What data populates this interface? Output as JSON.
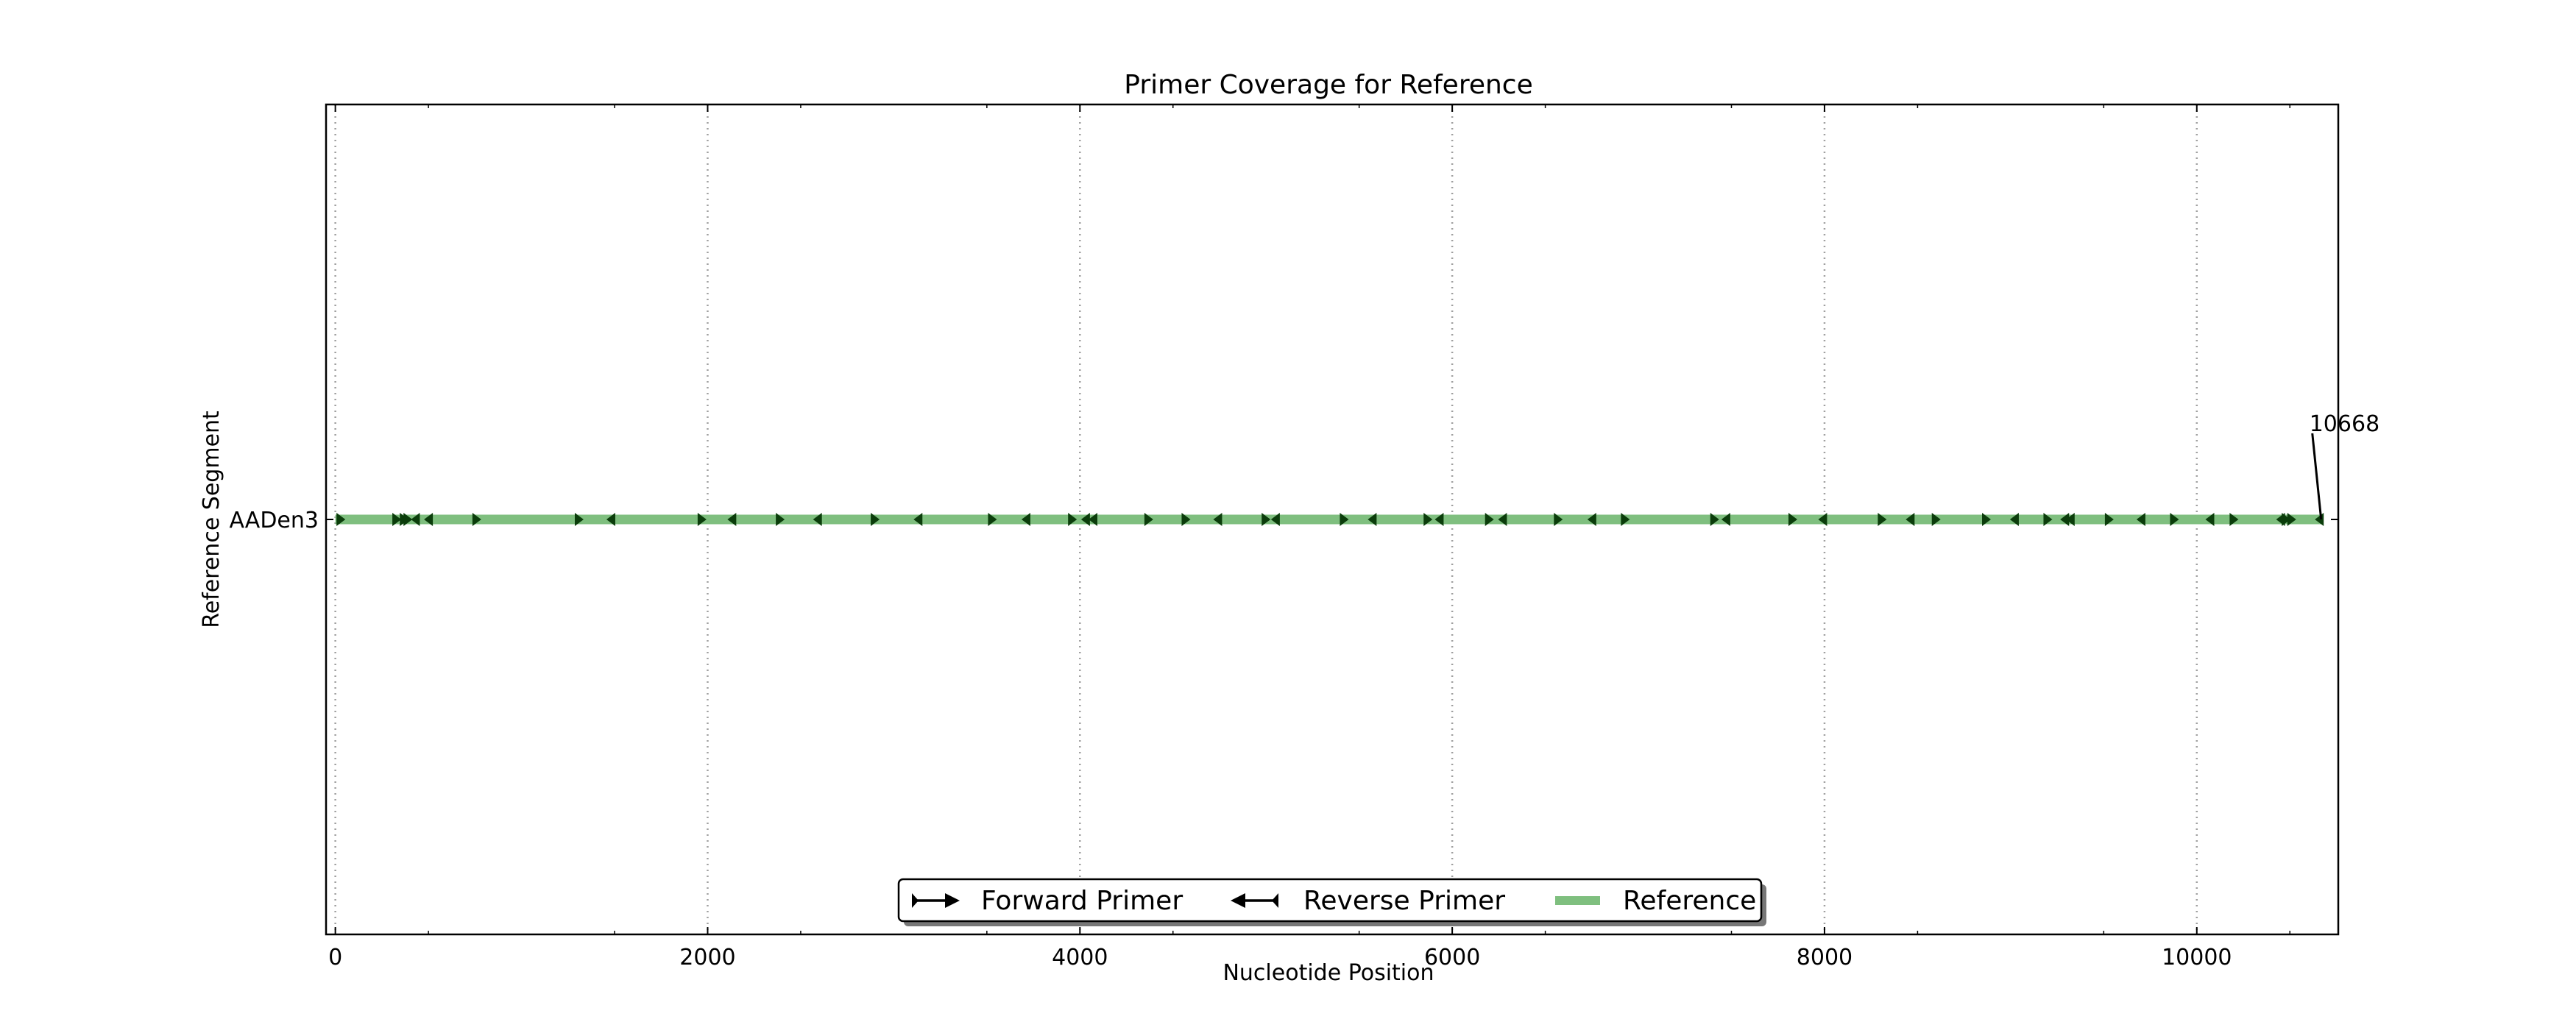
{
  "chart_data": {
    "type": "line",
    "title": "Primer Coverage for Reference",
    "xlabel": "Nucleotide Position",
    "ylabel": "Reference Segment",
    "xlim": [
      -50,
      10760
    ],
    "xticks": [
      0,
      2000,
      4000,
      6000,
      8000,
      10000
    ],
    "xtick_labels": [
      "0",
      "2000",
      "4000",
      "6000",
      "8000",
      "10000"
    ],
    "categories": [
      "AADen3"
    ],
    "grid": "vertical-dotted",
    "legend_position": "bottom-center",
    "colors": {
      "reference": "#7fbf7f",
      "primer": "#0b3d0b",
      "grid": "#a0a0a0",
      "axes": "#000000"
    },
    "reference": {
      "name": "Reference",
      "start": 0,
      "end": 10668
    },
    "annotation": {
      "text": "10668",
      "x": 10668
    },
    "legend": [
      {
        "label": "Forward Primer",
        "icon": "forward-arrow-icon"
      },
      {
        "label": "Reverse Primer",
        "icon": "reverse-arrow-icon"
      },
      {
        "label": "Reference",
        "icon": "reference-swatch-icon"
      }
    ],
    "series": [
      {
        "name": "Forward Primer",
        "direction": "forward",
        "positions": [
          30,
          330,
          370,
          390,
          760,
          1310,
          1970,
          2390,
          2900,
          3530,
          3960,
          4370,
          4570,
          5000,
          5420,
          5870,
          6200,
          6570,
          6930,
          7410,
          7830,
          8310,
          8600,
          8870,
          9200,
          9530,
          9880,
          10200,
          10480,
          10510
        ]
      },
      {
        "name": "Reverse Primer",
        "direction": "reverse",
        "positions": [
          430,
          500,
          1480,
          2130,
          2590,
          3130,
          3710,
          4030,
          4070,
          4740,
          5050,
          5570,
          5930,
          6270,
          6750,
          7470,
          7990,
          8460,
          9020,
          9290,
          9320,
          9700,
          10070,
          10450,
          10658
        ]
      }
    ]
  }
}
